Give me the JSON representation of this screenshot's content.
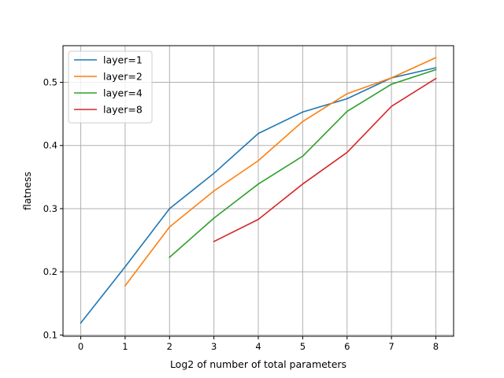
{
  "chart_data": {
    "type": "line",
    "xlabel": "Log2 of number of total parameters",
    "ylabel": "flatness",
    "xlim": [
      -0.4,
      8.4
    ],
    "ylim": [
      0.098,
      0.558
    ],
    "x_ticks": [
      0,
      1,
      2,
      3,
      4,
      5,
      6,
      7,
      8
    ],
    "y_ticks": [
      0.1,
      0.2,
      0.3,
      0.4,
      0.5
    ],
    "y_tick_labels": [
      "0.1",
      "0.2",
      "0.3",
      "0.4",
      "0.5"
    ],
    "grid": true,
    "legend_position": "top-left",
    "series": [
      {
        "name": "layer=1",
        "color": "#1f77b4",
        "x": [
          0,
          1,
          2,
          3,
          4,
          5,
          6,
          7,
          8
        ],
        "values": [
          0.119,
          0.208,
          0.3,
          0.356,
          0.419,
          0.453,
          0.474,
          0.507,
          0.523
        ]
      },
      {
        "name": "layer=2",
        "color": "#ff7f0e",
        "x": [
          1,
          2,
          3,
          4,
          5,
          6,
          7,
          8
        ],
        "values": [
          0.178,
          0.271,
          0.328,
          0.376,
          0.438,
          0.482,
          0.507,
          0.539
        ]
      },
      {
        "name": "layer=4",
        "color": "#2ca02c",
        "x": [
          2,
          3,
          4,
          5,
          6,
          7,
          8
        ],
        "values": [
          0.223,
          0.285,
          0.339,
          0.383,
          0.454,
          0.497,
          0.52
        ]
      },
      {
        "name": "layer=8",
        "color": "#d62728",
        "x": [
          3,
          4,
          5,
          6,
          7,
          8
        ],
        "values": [
          0.248,
          0.283,
          0.339,
          0.389,
          0.462,
          0.506
        ]
      }
    ]
  }
}
